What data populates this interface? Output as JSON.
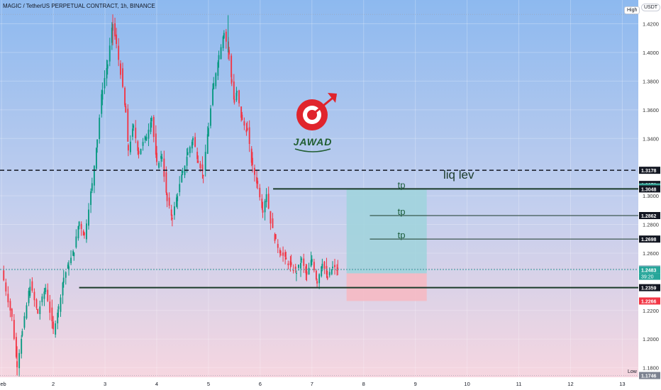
{
  "header": {
    "symbol_line": "MAGIC / TetherUS PERPETUAL CONTRACT, 1h, BINANCE"
  },
  "buttons": {
    "high_label": "High",
    "low_label": "Low",
    "currency": "USDT"
  },
  "logo": {
    "text": "JAWAD"
  },
  "colors": {
    "up": "#089981",
    "down": "#f23645",
    "stop_zone": "#f5b9c3",
    "target_zone": "#9fd3dc",
    "line": "#1b3b2a"
  },
  "chart_data": {
    "type": "candlestick",
    "title": "MAGIC / TetherUS PERPETUAL CONTRACT, 1h, BINANCE",
    "ylim": [
      1.1734,
      1.4366
    ],
    "xlim": [
      0.97,
      13.31
    ],
    "y_ticks": [
      "1.4200",
      "1.4000",
      "1.3800",
      "1.3600",
      "1.3400",
      "1.3000",
      "1.2800",
      "1.2600",
      "1.2200",
      "1.2000",
      "1.1800"
    ],
    "x_ticks": [
      {
        "label": "Feb",
        "value": 1
      },
      {
        "label": "2",
        "value": 2
      },
      {
        "label": "3",
        "value": 3
      },
      {
        "label": "4",
        "value": 4
      },
      {
        "label": "5",
        "value": 5
      },
      {
        "label": "6",
        "value": 6
      },
      {
        "label": "7",
        "value": 7
      },
      {
        "label": "8",
        "value": 8
      },
      {
        "label": "9",
        "value": 9
      },
      {
        "label": "10",
        "value": 10
      },
      {
        "label": "11",
        "value": 11
      },
      {
        "label": "12",
        "value": 12
      },
      {
        "label": "13",
        "value": 13
      }
    ],
    "candle_path": [
      [
        1.0,
        1.248
      ],
      [
        1.2,
        1.215
      ],
      [
        1.3,
        1.182
      ],
      [
        1.4,
        1.205
      ],
      [
        1.55,
        1.238
      ],
      [
        1.7,
        1.218
      ],
      [
        1.85,
        1.236
      ],
      [
        2.0,
        1.206
      ],
      [
        2.1,
        1.222
      ],
      [
        2.2,
        1.243
      ],
      [
        2.3,
        1.252
      ],
      [
        2.4,
        1.262
      ],
      [
        2.5,
        1.282
      ],
      [
        2.6,
        1.272
      ],
      [
        2.75,
        1.308
      ],
      [
        2.85,
        1.34
      ],
      [
        2.95,
        1.375
      ],
      [
        3.05,
        1.392
      ],
      [
        3.15,
        1.42
      ],
      [
        3.22,
        1.405
      ],
      [
        3.3,
        1.386
      ],
      [
        3.4,
        1.358
      ],
      [
        3.45,
        1.332
      ],
      [
        3.55,
        1.348
      ],
      [
        3.65,
        1.33
      ],
      [
        3.8,
        1.342
      ],
      [
        3.9,
        1.355
      ],
      [
        4.0,
        1.322
      ],
      [
        4.1,
        1.328
      ],
      [
        4.2,
        1.296
      ],
      [
        4.3,
        1.285
      ],
      [
        4.4,
        1.301
      ],
      [
        4.5,
        1.316
      ],
      [
        4.6,
        1.33
      ],
      [
        4.7,
        1.34
      ],
      [
        4.8,
        1.325
      ],
      [
        4.9,
        1.315
      ],
      [
        5.0,
        1.348
      ],
      [
        5.1,
        1.378
      ],
      [
        5.2,
        1.398
      ],
      [
        5.3,
        1.415
      ],
      [
        5.4,
        1.398
      ],
      [
        5.45,
        1.38
      ],
      [
        5.5,
        1.365
      ],
      [
        5.55,
        1.372
      ],
      [
        5.65,
        1.352
      ],
      [
        5.75,
        1.345
      ],
      [
        5.85,
        1.32
      ],
      [
        5.95,
        1.308
      ],
      [
        6.05,
        1.29
      ],
      [
        6.12,
        1.302
      ],
      [
        6.2,
        1.282
      ],
      [
        6.3,
        1.268
      ],
      [
        6.4,
        1.26
      ],
      [
        6.5,
        1.255
      ],
      [
        6.6,
        1.25
      ],
      [
        6.7,
        1.247
      ],
      [
        6.8,
        1.255
      ],
      [
        6.9,
        1.244
      ],
      [
        7.0,
        1.256
      ],
      [
        7.1,
        1.24
      ],
      [
        7.2,
        1.254
      ],
      [
        7.3,
        1.242
      ],
      [
        7.4,
        1.25
      ],
      [
        7.5,
        1.248
      ]
    ],
    "last_price": 1.2483,
    "countdown": "39:20",
    "high": 1.4266,
    "low": 1.1746,
    "horizontal_lines": [
      {
        "price": 1.3178,
        "style": "dashed",
        "label": "liq lev",
        "tag": "1.3178"
      },
      {
        "price": 1.3048,
        "style": "solid",
        "from_x": 6.25,
        "tag": "1.3048"
      },
      {
        "price": 1.2862,
        "style": "thin",
        "from_x": 8.12,
        "tag": "1.2862"
      },
      {
        "price": 1.2698,
        "style": "thin",
        "from_x": 8.12,
        "tag": "1.2698"
      },
      {
        "price": 1.2359,
        "style": "solid",
        "from_x": 2.5,
        "tag": "1.2359"
      }
    ],
    "tp_labels": [
      {
        "text": "tp",
        "price": 1.3048
      },
      {
        "text": "tp",
        "price": 1.2862
      },
      {
        "text": "tp",
        "price": 1.2698
      }
    ],
    "position": {
      "entry": 1.2459,
      "target": 1.3048,
      "stop": 1.2266,
      "x_start": 7.67,
      "x_end": 9.22
    },
    "price_tags": [
      {
        "label": "1.3178",
        "price": 1.3178,
        "color": "#131722"
      },
      {
        "label": "1.3079",
        "price": 1.3079,
        "color": "#131722"
      },
      {
        "label": "1.3062",
        "price": 1.3062,
        "color": "#3aa89a"
      },
      {
        "label": "1.3048",
        "price": 1.3048,
        "color": "#131722"
      },
      {
        "label": "1.2862",
        "price": 1.2862,
        "color": "#131722"
      },
      {
        "label": "1.2698",
        "price": 1.2698,
        "color": "#131722"
      },
      {
        "label": "1.2490",
        "price": 1.249,
        "color": "#9fb7c7"
      },
      {
        "label": "1.2483",
        "price": 1.2483,
        "color": "#26a69a"
      },
      {
        "label": "1.2359",
        "price": 1.2359,
        "color": "#131722"
      },
      {
        "label": "1.2266",
        "price": 1.2266,
        "color": "#f23645"
      },
      {
        "label": "1.1746",
        "price": 1.1746,
        "color": "#7c8290"
      }
    ]
  }
}
